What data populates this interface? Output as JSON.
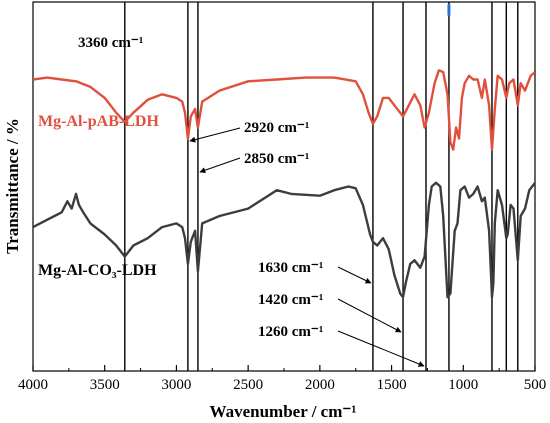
{
  "chart_data": {
    "type": "line",
    "xlabel": "Wavenumber / cm⁻¹",
    "ylabel": "Transmittance / %",
    "xlim": [
      4000,
      500
    ],
    "x_reversed": true,
    "y_tick_labels": false,
    "grid": false,
    "x_ticks": [
      {
        "value": 4000,
        "label": "4000"
      },
      {
        "value": 3500,
        "label": "3500"
      },
      {
        "value": 3000,
        "label": "3000"
      },
      {
        "value": 2500,
        "label": "2500"
      },
      {
        "value": 2000,
        "label": "2000"
      },
      {
        "value": 1500,
        "label": "1500"
      },
      {
        "value": 1000,
        "label": "1000"
      },
      {
        "value": 500,
        "label": "500"
      }
    ],
    "series": [
      {
        "name": "Mg-Al-pAB-LDH",
        "color": "#e0503c",
        "points": [
          [
            4000,
            79
          ],
          [
            3900,
            79.5
          ],
          [
            3800,
            79
          ],
          [
            3700,
            78.5
          ],
          [
            3600,
            77
          ],
          [
            3500,
            74
          ],
          [
            3420,
            70
          ],
          [
            3360,
            67.5
          ],
          [
            3300,
            70
          ],
          [
            3200,
            73.5
          ],
          [
            3100,
            75
          ],
          [
            3000,
            74
          ],
          [
            2960,
            73
          ],
          [
            2940,
            70
          ],
          [
            2920,
            63
          ],
          [
            2900,
            69
          ],
          [
            2870,
            71
          ],
          [
            2850,
            66
          ],
          [
            2820,
            73
          ],
          [
            2700,
            76
          ],
          [
            2500,
            78.5
          ],
          [
            2300,
            79
          ],
          [
            2100,
            79.5
          ],
          [
            1900,
            79.5
          ],
          [
            1750,
            78.5
          ],
          [
            1700,
            75
          ],
          [
            1660,
            70
          ],
          [
            1630,
            67
          ],
          [
            1600,
            69
          ],
          [
            1560,
            74
          ],
          [
            1520,
            74
          ],
          [
            1480,
            72
          ],
          [
            1420,
            69
          ],
          [
            1380,
            72
          ],
          [
            1340,
            75
          ],
          [
            1300,
            72
          ],
          [
            1270,
            66
          ],
          [
            1240,
            70
          ],
          [
            1200,
            78
          ],
          [
            1170,
            81.5
          ],
          [
            1140,
            81
          ],
          [
            1110,
            75
          ],
          [
            1090,
            62
          ],
          [
            1070,
            60
          ],
          [
            1050,
            66
          ],
          [
            1030,
            63
          ],
          [
            1010,
            74
          ],
          [
            990,
            78
          ],
          [
            960,
            80
          ],
          [
            930,
            79
          ],
          [
            900,
            79
          ],
          [
            870,
            74
          ],
          [
            850,
            79
          ],
          [
            820,
            72
          ],
          [
            800,
            60
          ],
          [
            780,
            71
          ],
          [
            760,
            80
          ],
          [
            730,
            79
          ],
          [
            700,
            74
          ],
          [
            680,
            78
          ],
          [
            650,
            79
          ],
          [
            620,
            72
          ],
          [
            600,
            78
          ],
          [
            570,
            76
          ],
          [
            530,
            80
          ],
          [
            500,
            81
          ]
        ]
      },
      {
        "name": "Mg-Al-CO₃-LDH",
        "color": "#3d3d3d",
        "points": [
          [
            4000,
            39
          ],
          [
            3900,
            41
          ],
          [
            3850,
            42
          ],
          [
            3800,
            43
          ],
          [
            3760,
            46
          ],
          [
            3730,
            44
          ],
          [
            3700,
            48
          ],
          [
            3680,
            45
          ],
          [
            3650,
            43
          ],
          [
            3600,
            40
          ],
          [
            3500,
            37
          ],
          [
            3420,
            34
          ],
          [
            3360,
            31
          ],
          [
            3300,
            34
          ],
          [
            3200,
            36
          ],
          [
            3100,
            39
          ],
          [
            3000,
            40
          ],
          [
            2960,
            39
          ],
          [
            2940,
            36
          ],
          [
            2920,
            29
          ],
          [
            2900,
            35
          ],
          [
            2870,
            38
          ],
          [
            2850,
            27
          ],
          [
            2820,
            40
          ],
          [
            2700,
            42
          ],
          [
            2500,
            44
          ],
          [
            2300,
            49
          ],
          [
            2200,
            48
          ],
          [
            2000,
            47.5
          ],
          [
            1900,
            49
          ],
          [
            1800,
            50
          ],
          [
            1750,
            49.5
          ],
          [
            1700,
            45
          ],
          [
            1650,
            37
          ],
          [
            1630,
            35
          ],
          [
            1600,
            34
          ],
          [
            1560,
            36
          ],
          [
            1520,
            33
          ],
          [
            1480,
            26
          ],
          [
            1440,
            21
          ],
          [
            1420,
            20
          ],
          [
            1400,
            24
          ],
          [
            1370,
            29
          ],
          [
            1340,
            30
          ],
          [
            1300,
            28
          ],
          [
            1270,
            31
          ],
          [
            1240,
            45
          ],
          [
            1220,
            50
          ],
          [
            1190,
            51
          ],
          [
            1160,
            50
          ],
          [
            1140,
            42
          ],
          [
            1110,
            20
          ],
          [
            1090,
            21
          ],
          [
            1060,
            38
          ],
          [
            1040,
            40
          ],
          [
            1020,
            49
          ],
          [
            990,
            50
          ],
          [
            960,
            47
          ],
          [
            930,
            48
          ],
          [
            900,
            50
          ],
          [
            870,
            46
          ],
          [
            850,
            47
          ],
          [
            820,
            38
          ],
          [
            800,
            20
          ],
          [
            790,
            24
          ],
          [
            780,
            40
          ],
          [
            760,
            49
          ],
          [
            730,
            45
          ],
          [
            700,
            36
          ],
          [
            690,
            37
          ],
          [
            670,
            45
          ],
          [
            650,
            44
          ],
          [
            620,
            30
          ],
          [
            600,
            42
          ],
          [
            570,
            44
          ],
          [
            540,
            49
          ],
          [
            500,
            51
          ]
        ]
      }
    ],
    "reference_lines": [
      3360,
      2920,
      2850,
      1630,
      1420,
      1260,
      1100,
      800,
      700,
      620
    ],
    "annotations": [
      {
        "text": "3360 cm⁻¹",
        "x": 3360
      },
      {
        "text": "2920 cm⁻¹",
        "x": 2920
      },
      {
        "text": "2850 cm⁻¹",
        "x": 2850
      },
      {
        "text": "1630 cm⁻¹",
        "x": 1630
      },
      {
        "text": "1420 cm⁻¹",
        "x": 1420
      },
      {
        "text": "1260 cm⁻¹",
        "x": 1260
      }
    ],
    "colors": {
      "pab": "#e0503c",
      "co3": "#3d3d3d",
      "marker": "#2a6fd6"
    }
  }
}
